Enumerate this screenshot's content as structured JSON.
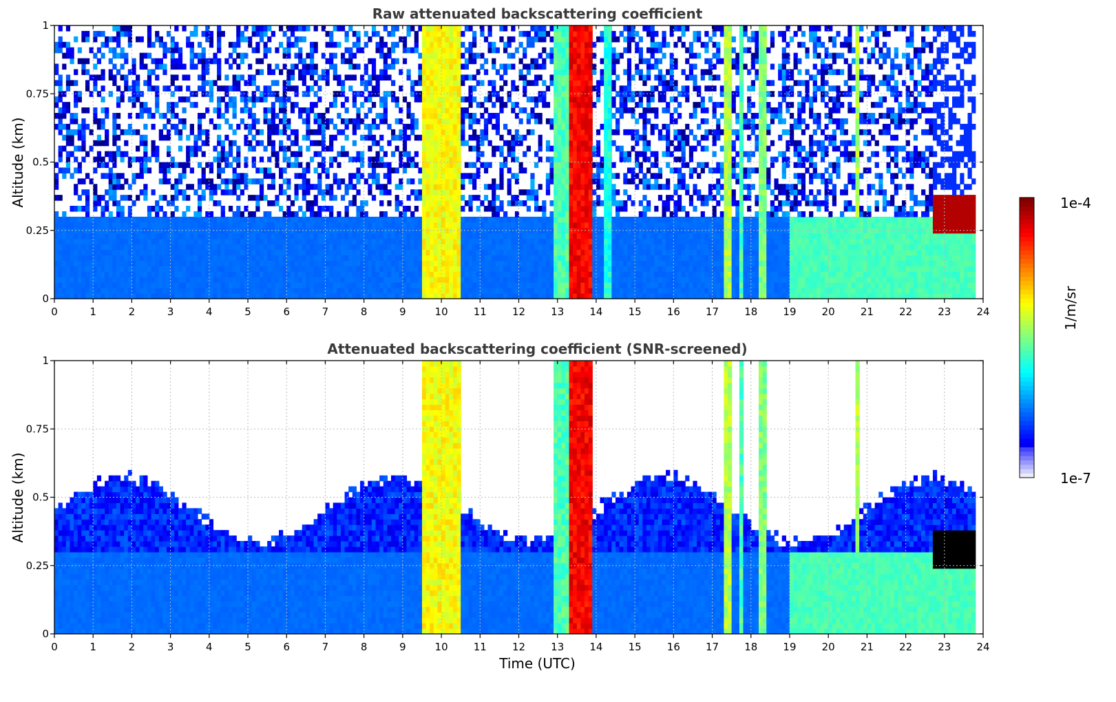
{
  "chart_data": [
    {
      "type": "heatmap",
      "title": "Raw attenuated backscattering coefficient",
      "xlabel": "",
      "ylabel": "Altitude (km)",
      "xlim": [
        0,
        24
      ],
      "ylim": [
        0,
        1
      ],
      "xticks": [
        "0",
        "1",
        "2",
        "3",
        "4",
        "5",
        "6",
        "7",
        "8",
        "9",
        "10",
        "11",
        "12",
        "13",
        "14",
        "15",
        "16",
        "17",
        "18",
        "19",
        "20",
        "21",
        "22",
        "23",
        "24"
      ],
      "yticks": [
        "0",
        "0.25",
        "0.5",
        "0.75",
        "1"
      ],
      "grid": true,
      "data_end_time": 23.8,
      "features": [
        {
          "kind": "background",
          "x": [
            0,
            23.8
          ],
          "level": 0.22
        },
        {
          "kind": "noise",
          "x": [
            0,
            22.7
          ],
          "y": [
            0.3,
            1.0
          ],
          "level": 0.3
        },
        {
          "kind": "cloud",
          "x": [
            9.5,
            10.5
          ],
          "level": 0.62
        },
        {
          "kind": "cloud",
          "x": [
            12.9,
            13.3
          ],
          "level": 0.45
        },
        {
          "kind": "cloud",
          "x": [
            13.3,
            13.9
          ],
          "level": 0.88
        },
        {
          "kind": "cloud",
          "x": [
            14.2,
            14.4
          ],
          "level": 0.4
        },
        {
          "kind": "cloud",
          "x": [
            17.3,
            17.5
          ],
          "level": 0.55
        },
        {
          "kind": "cloud",
          "x": [
            17.7,
            17.8
          ],
          "level": 0.45
        },
        {
          "kind": "cloud",
          "x": [
            18.2,
            18.35
          ],
          "level": 0.5
        },
        {
          "kind": "cloud",
          "x": [
            20.65,
            20.75
          ],
          "level": 0.55
        },
        {
          "kind": "boundary_layer",
          "x": [
            19.0,
            23.8
          ],
          "y": [
            0.0,
            0.3
          ],
          "level": 0.42
        },
        {
          "kind": "fog_top",
          "x": [
            22.7,
            23.8
          ],
          "y": [
            0.22,
            0.38
          ],
          "level": 0.95
        }
      ]
    },
    {
      "type": "heatmap",
      "title": "Attenuated backscattering coefficient (SNR-screened)",
      "xlabel": "Time (UTC)",
      "ylabel": "Altitude (km)",
      "xlim": [
        0,
        24
      ],
      "ylim": [
        0,
        1
      ],
      "xticks": [
        "0",
        "1",
        "2",
        "3",
        "4",
        "5",
        "6",
        "7",
        "8",
        "9",
        "10",
        "11",
        "12",
        "13",
        "14",
        "15",
        "16",
        "17",
        "18",
        "19",
        "20",
        "21",
        "22",
        "23",
        "24"
      ],
      "yticks": [
        "0",
        "0.25",
        "0.5",
        "0.75",
        "1"
      ],
      "grid": true,
      "data_end_time": 23.8,
      "features": [
        {
          "kind": "background",
          "x": [
            0,
            23.8
          ],
          "level": 0.22
        },
        {
          "kind": "screened_top",
          "x": [
            0,
            23.8
          ],
          "level": 0.5
        },
        {
          "kind": "cloud",
          "x": [
            9.5,
            10.5
          ],
          "level": 0.62
        },
        {
          "kind": "cloud",
          "x": [
            12.9,
            13.3
          ],
          "level": 0.45
        },
        {
          "kind": "cloud",
          "x": [
            13.3,
            13.9
          ],
          "level": 0.88
        },
        {
          "kind": "cloud",
          "x": [
            17.3,
            17.5
          ],
          "level": 0.55
        },
        {
          "kind": "cloud",
          "x": [
            17.7,
            17.8
          ],
          "level": 0.45
        },
        {
          "kind": "cloud",
          "x": [
            18.2,
            18.35
          ],
          "level": 0.5
        },
        {
          "kind": "cloud",
          "x": [
            20.65,
            20.75
          ],
          "level": 0.55
        },
        {
          "kind": "boundary_layer",
          "x": [
            19.0,
            23.8
          ],
          "y": [
            0.0,
            0.3
          ],
          "level": 0.42
        },
        {
          "kind": "fog_top",
          "x": [
            22.7,
            23.8
          ],
          "y": [
            0.22,
            0.38
          ],
          "level": 1.0
        }
      ]
    }
  ],
  "colorbar": {
    "label": "1/m/sr",
    "min_label": "1e-7",
    "max_label": "1e-4",
    "scale": "log",
    "colormap": "jet"
  }
}
